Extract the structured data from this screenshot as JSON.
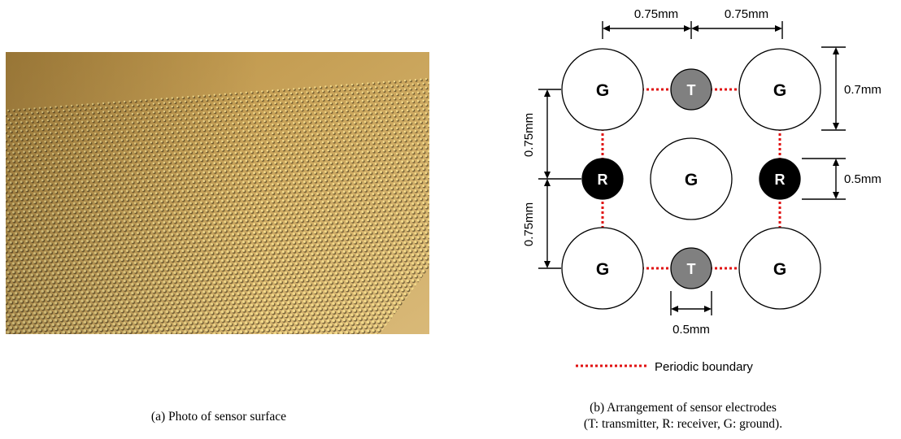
{
  "photo": {
    "caption": "(a) Photo of sensor surface",
    "colors": {
      "background": "#c9a45a",
      "dot": "#f2d98a",
      "shadow": "#2a2110"
    }
  },
  "diagram": {
    "caption_line1": "(b) Arrangement of sensor electrodes",
    "caption_line2": "(T: transmitter, R: receiver, G: ground).",
    "electrodes": {
      "ground_label": "G",
      "transmitter_label": "T",
      "receiver_label": "R"
    },
    "dimensions": {
      "pitch_h_left": "0.75mm",
      "pitch_h_right": "0.75mm",
      "pitch_v_top": "0.75mm",
      "pitch_v_bottom": "0.75mm",
      "ground_diameter": "0.7mm",
      "receiver_diameter": "0.5mm",
      "transmitter_diameter": "0.5mm"
    },
    "legend": {
      "label": "Periodic boundary",
      "color": "#e01010"
    },
    "colors": {
      "transmitter": "#808080",
      "receiver": "#000000",
      "ground": "#ffffff"
    }
  }
}
